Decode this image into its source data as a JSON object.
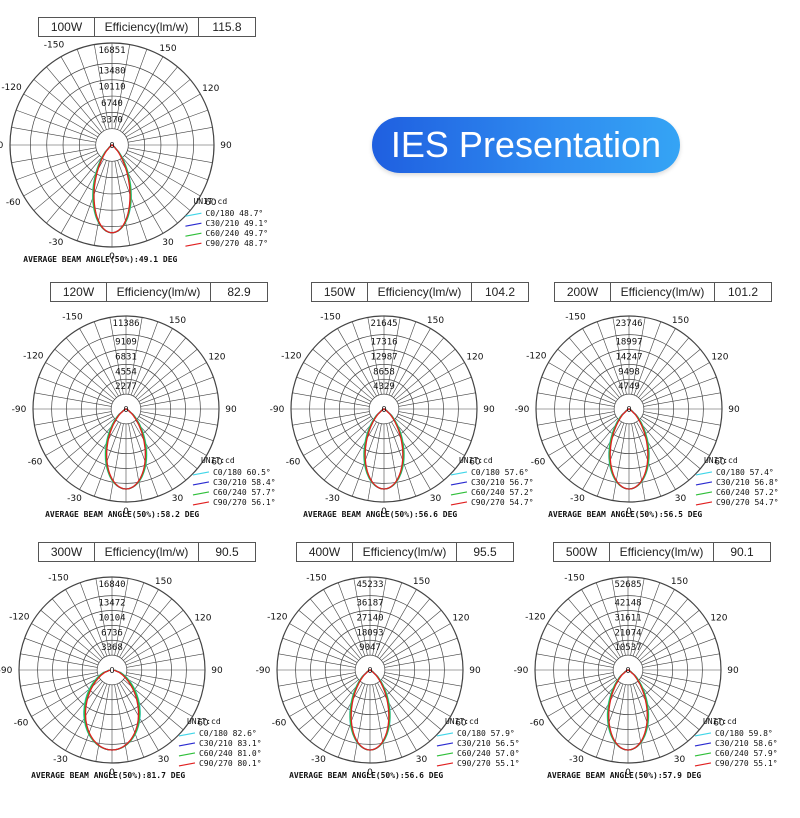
{
  "badge": "IES Presentation",
  "efficiency_label": "Efficiency(lm/w)",
  "unit_label": "UNIT:cd",
  "angle_labels": [
    "0",
    "30",
    "60",
    "90",
    "120",
    "150",
    "-150",
    "-120",
    "-90",
    "-60",
    "-30"
  ],
  "colors": {
    "c0": "#41d6e8",
    "c30": "#2a2ad0",
    "c60": "#2fbf3a",
    "c90": "#e02020"
  },
  "chart_data": [
    {
      "type": "polar",
      "power": "100W",
      "efficiency": "115.8",
      "rings": [
        "3370",
        "6740",
        "10110",
        "13480",
        "16851"
      ],
      "legend": [
        {
          "name": "C0/180",
          "angle": "48.7°"
        },
        {
          "name": "C30/210",
          "angle": "49.1°"
        },
        {
          "name": "C60/240",
          "angle": "49.7°"
        },
        {
          "name": "C90/270",
          "angle": "48.7°"
        }
      ],
      "beam_text": "AVERAGE BEAM ANGLE(50%):49.1 DEG",
      "beam": 49.1
    },
    {
      "type": "polar",
      "power": "120W",
      "efficiency": "82.9",
      "rings": [
        "2277",
        "4554",
        "6831",
        "9109",
        "11386"
      ],
      "legend": [
        {
          "name": "C0/180",
          "angle": "60.5°"
        },
        {
          "name": "C30/210",
          "angle": "58.4°"
        },
        {
          "name": "C60/240",
          "angle": "57.7°"
        },
        {
          "name": "C90/270",
          "angle": "56.1°"
        }
      ],
      "beam_text": "AVERAGE BEAM ANGLE(50%):58.2 DEG",
      "beam": 58.2
    },
    {
      "type": "polar",
      "power": "150W",
      "efficiency": "104.2",
      "rings": [
        "4329",
        "8658",
        "12987",
        "17316",
        "21645"
      ],
      "legend": [
        {
          "name": "C0/180",
          "angle": "57.6°"
        },
        {
          "name": "C30/210",
          "angle": "56.7°"
        },
        {
          "name": "C60/240",
          "angle": "57.2°"
        },
        {
          "name": "C90/270",
          "angle": "54.7°"
        }
      ],
      "beam_text": "AVERAGE BEAM ANGLE(50%):56.6 DEG",
      "beam": 56.6
    },
    {
      "type": "polar",
      "power": "200W",
      "efficiency": "101.2",
      "rings": [
        "4749",
        "9498",
        "14247",
        "18997",
        "23746"
      ],
      "legend": [
        {
          "name": "C0/180",
          "angle": "57.4°"
        },
        {
          "name": "C30/210",
          "angle": "56.8°"
        },
        {
          "name": "C60/240",
          "angle": "57.2°"
        },
        {
          "name": "C90/270",
          "angle": "54.7°"
        }
      ],
      "beam_text": "AVERAGE BEAM ANGLE(50%):56.5 DEG",
      "beam": 56.5
    },
    {
      "type": "polar",
      "power": "300W",
      "efficiency": "90.5",
      "rings": [
        "3368",
        "6736",
        "10104",
        "13472",
        "16840"
      ],
      "legend": [
        {
          "name": "C0/180",
          "angle": "82.6°"
        },
        {
          "name": "C30/210",
          "angle": "83.1°"
        },
        {
          "name": "C60/240",
          "angle": "81.0°"
        },
        {
          "name": "C90/270",
          "angle": "80.1°"
        }
      ],
      "beam_text": "AVERAGE BEAM ANGLE(50%):81.7 DEG",
      "beam": 81.7
    },
    {
      "type": "polar",
      "power": "400W",
      "efficiency": "95.5",
      "rings": [
        "9047",
        "18093",
        "27140",
        "36187",
        "45233"
      ],
      "legend": [
        {
          "name": "C0/180",
          "angle": "57.9°"
        },
        {
          "name": "C30/210",
          "angle": "56.5°"
        },
        {
          "name": "C60/240",
          "angle": "57.0°"
        },
        {
          "name": "C90/270",
          "angle": "55.1°"
        }
      ],
      "beam_text": "AVERAGE BEAM ANGLE(50%):56.6 DEG",
      "beam": 56.6
    },
    {
      "type": "polar",
      "power": "500W",
      "efficiency": "90.1",
      "rings": [
        "10537",
        "21074",
        "31611",
        "42148",
        "52685"
      ],
      "legend": [
        {
          "name": "C0/180",
          "angle": "59.8°"
        },
        {
          "name": "C30/210",
          "angle": "58.6°"
        },
        {
          "name": "C60/240",
          "angle": "57.9°"
        },
        {
          "name": "C90/270",
          "angle": "55.1°"
        }
      ],
      "beam_text": "AVERAGE BEAM ANGLE(50%):57.9 DEG",
      "beam": 57.9
    }
  ]
}
